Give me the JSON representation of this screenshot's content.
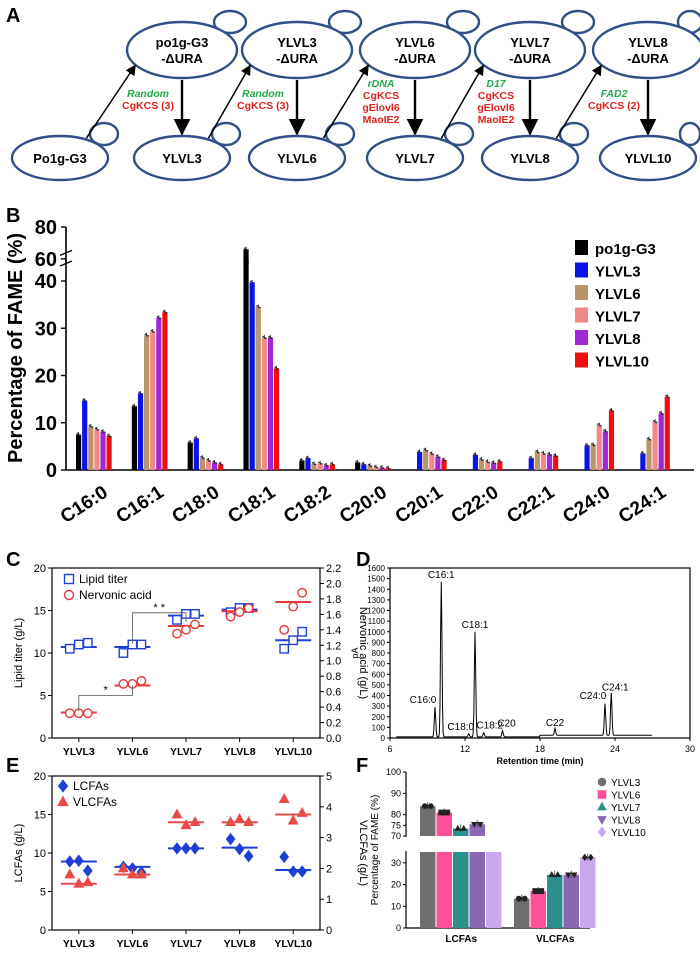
{
  "panel_labels": {
    "A": "A",
    "B": "B",
    "C": "C",
    "D": "D",
    "E": "E",
    "F": "F"
  },
  "pathway": {
    "strains": [
      {
        "id": "po1g",
        "label": "Po1g-G3"
      },
      {
        "id": "pura1",
        "label": "po1g-G3 -ΔURA"
      },
      {
        "id": "ylvl3",
        "label": "YLVL3"
      },
      {
        "id": "ura3",
        "label": "YLVL3 -ΔURA"
      },
      {
        "id": "ylvl6",
        "label": "YLVL6"
      },
      {
        "id": "ura6",
        "label": "YLVL6 -ΔURA"
      },
      {
        "id": "ylvl7",
        "label": "YLVL7"
      },
      {
        "id": "ura7",
        "label": "YLVL7 -ΔURA"
      },
      {
        "id": "ylvl8",
        "label": "YLVL8"
      },
      {
        "id": "ura8",
        "label": "YLVL8 -ΔURA"
      },
      {
        "id": "ylvl10",
        "label": "YLVL10"
      }
    ],
    "steps": [
      {
        "site": "Random",
        "genes": [
          "CgKCS (3)"
        ]
      },
      {
        "site": "Random",
        "genes": [
          "CgKCS (3)"
        ]
      },
      {
        "site": "rDNA",
        "genes": [
          "CgKCS",
          "gElovl6",
          "MaoIE2"
        ]
      },
      {
        "site": "D17",
        "genes": [
          "CgKCS",
          "gElovl6",
          "MaoIE2"
        ]
      },
      {
        "site": "FAD2",
        "genes": [
          "CgKCS (2)"
        ]
      }
    ],
    "colors": {
      "ellipse": "#2f4f86",
      "site": "#1faa4a",
      "gene": "#e0221c"
    }
  },
  "chart_data": [
    {
      "id": "B",
      "type": "bar",
      "ylabel": "Percentage of FAME (%)",
      "categories": [
        "C16:0",
        "C16:1",
        "C18:0",
        "C18:1",
        "C18:2",
        "C20:0",
        "C20:1",
        "C22:0",
        "C22:1",
        "C24:0",
        "C24:1"
      ],
      "series": [
        {
          "name": "po1g-G3",
          "color": "#000000",
          "values": [
            7.5,
            13.5,
            5.8,
            66,
            2,
            1.6,
            0,
            0,
            0,
            0,
            0
          ]
        },
        {
          "name": "YLVL3",
          "color": "#0a14e6",
          "values": [
            14.7,
            16.2,
            6.7,
            39.7,
            2.5,
            1.2,
            3.8,
            3.2,
            2.5,
            5.2,
            3.5
          ]
        },
        {
          "name": "YLVL6",
          "color": "#b8956a",
          "values": [
            9.2,
            28.5,
            2.6,
            34.5,
            1.3,
            0.9,
            4.2,
            2.2,
            3.8,
            5.3,
            6.5
          ]
        },
        {
          "name": "YLVL7",
          "color": "#f28888",
          "values": [
            8.6,
            29.3,
            2.0,
            28,
            1.4,
            0.6,
            3.4,
            1.7,
            3.5,
            9.5,
            10.2
          ]
        },
        {
          "name": "YLVL8",
          "color": "#9e28d8",
          "values": [
            8.1,
            32.2,
            1.6,
            28,
            1.0,
            0.5,
            2.8,
            1.5,
            3.3,
            8.2,
            12.0
          ]
        },
        {
          "name": "YLVL10",
          "color": "#ee1010",
          "values": [
            7.2,
            33.4,
            1.2,
            21.5,
            1.2,
            0.4,
            2.1,
            1.8,
            3.0,
            12.6,
            15.5
          ]
        }
      ],
      "yticks": [
        "0",
        "10",
        "20",
        "30",
        "40",
        "60",
        "80"
      ],
      "ybreak": [
        45,
        58
      ]
    },
    {
      "id": "C",
      "type": "scatter",
      "categories": [
        "YLVL3",
        "YLVL6",
        "YLVL7",
        "YLVL8",
        "YLVL10"
      ],
      "ylabel": "Lipid titer (g/L)",
      "y2label": "Nervonic acid (g/L)",
      "ylim": [
        0,
        20
      ],
      "y2lim": [
        0,
        2.2
      ],
      "yticks": [
        "0",
        "5",
        "10",
        "15",
        "20"
      ],
      "y2ticks": [
        "0.0",
        "0.2",
        "0.4",
        "0.6",
        "0.8",
        "1.0",
        "1.2",
        "1.4",
        "1.6",
        "1.8",
        "2.0",
        "2.2"
      ],
      "series": [
        {
          "name": "Lipid titer",
          "color": "#1e3fd6",
          "marker": "square",
          "axis": "left",
          "points": [
            [
              10.5,
              11.0,
              11.2
            ],
            [
              10.0,
              11.0,
              11.0
            ],
            [
              13.9,
              14.6,
              14.6
            ],
            [
              14.8,
              15.3,
              15.3
            ],
            [
              10.5,
              11.5,
              12.5
            ]
          ],
          "means": [
            10.7,
            10.7,
            14.4,
            15.1,
            11.5
          ]
        },
        {
          "name": "Nervonic acid",
          "color": "#e83a3a",
          "marker": "circle",
          "axis": "right",
          "points": [
            [
              0.32,
              0.32,
              0.32
            ],
            [
              0.7,
              0.7,
              0.74
            ],
            [
              1.35,
              1.4,
              1.47
            ],
            [
              1.57,
              1.63,
              1.68
            ],
            [
              1.4,
              1.7,
              1.88
            ]
          ],
          "means": [
            0.33,
            0.68,
            1.45,
            1.64,
            1.76
          ]
        }
      ],
      "annotations": [
        "*",
        "* *"
      ]
    },
    {
      "id": "D",
      "type": "line",
      "xlabel": "Retention time (min)",
      "ylabel": "pA",
      "xlim": [
        6,
        30
      ],
      "ylim": [
        0,
        1600
      ],
      "xticks": [
        "6",
        "12",
        "18",
        "24",
        "30"
      ],
      "yticks": [
        "0",
        "100",
        "200",
        "300",
        "400",
        "500",
        "600",
        "700",
        "800",
        "900",
        "1000",
        "1100",
        "1200",
        "1300",
        "1400",
        "1500",
        "1600"
      ],
      "peaks": [
        {
          "label": "C16:0",
          "x": 9.6,
          "y": 280
        },
        {
          "label": "C16:1",
          "x": 10.1,
          "y": 1460
        },
        {
          "label": "C18:0",
          "x": 12.3,
          "y": 30
        },
        {
          "label": "C18:1",
          "x": 12.8,
          "y": 990
        },
        {
          "label": "C18:2",
          "x": 13.5,
          "y": 40
        },
        {
          "label": "C20",
          "x": 15.0,
          "y": 60
        },
        {
          "label": "C22",
          "x": 19.2,
          "y": 65
        },
        {
          "label": "C24:0",
          "x": 23.2,
          "y": 300
        },
        {
          "label": "C24:1",
          "x": 23.7,
          "y": 400
        }
      ]
    },
    {
      "id": "E",
      "type": "scatter",
      "categories": [
        "YLVL3",
        "YLVL6",
        "YLVL7",
        "YLVL8",
        "YLVL10"
      ],
      "ylabel": "LCFAs (g/L)",
      "y2label": "VLCFAs (g/L)",
      "ylim": [
        0,
        20
      ],
      "y2lim": [
        0,
        5
      ],
      "yticks": [
        "0",
        "5",
        "10",
        "15",
        "20"
      ],
      "y2ticks": [
        "0",
        "1",
        "2",
        "3",
        "4",
        "5"
      ],
      "series": [
        {
          "name": "LCFAs",
          "color": "#1e3fd6",
          "marker": "diamond",
          "axis": "left",
          "points": [
            [
              8.9,
              9.0,
              7.7
            ],
            [
              8.2,
              8.0,
              7.5
            ],
            [
              10.6,
              10.6,
              10.6
            ],
            [
              11.8,
              10.5,
              9.6
            ],
            [
              9.5,
              7.6,
              7.6
            ]
          ],
          "means": [
            8.9,
            8.2,
            10.6,
            10.7,
            7.8
          ]
        },
        {
          "name": "VLCFAs",
          "color": "#e84a4a",
          "marker": "triangle",
          "axis": "right",
          "points": [
            [
              1.8,
              1.5,
              1.55
            ],
            [
              2.0,
              1.8,
              1.8
            ],
            [
              3.75,
              3.4,
              3.5
            ],
            [
              3.5,
              3.6,
              3.5
            ],
            [
              4.25,
              3.55,
              3.8
            ]
          ],
          "means": [
            1.5,
            1.8,
            3.5,
            3.5,
            3.75
          ]
        }
      ]
    },
    {
      "id": "F",
      "type": "bar",
      "ylabel": "Percentage of FAME (%)",
      "categories": [
        "LCFAs",
        "VLCFAs"
      ],
      "yticks": [
        "0",
        "10",
        "20",
        "30",
        "70",
        "75",
        "80",
        "90",
        "100"
      ],
      "series": [
        {
          "name": "YLVL3",
          "color": "#6f6f6f",
          "marker": "circle",
          "values": [
            84,
            13.5
          ]
        },
        {
          "name": "YLVL6",
          "color": "#ff4f9a",
          "marker": "square",
          "values": [
            81,
            17
          ]
        },
        {
          "name": "YLVL7",
          "color": "#2d8f8c",
          "marker": "triangle",
          "values": [
            73.5,
            24.5
          ]
        },
        {
          "name": "YLVL8",
          "color": "#8a67b0",
          "marker": "triangle-down",
          "values": [
            75.5,
            24.5
          ]
        },
        {
          "name": "YLVL10",
          "color": "#c9a8ee",
          "marker": "diamond",
          "values": [
            67.5,
            32.5
          ]
        }
      ]
    }
  ]
}
